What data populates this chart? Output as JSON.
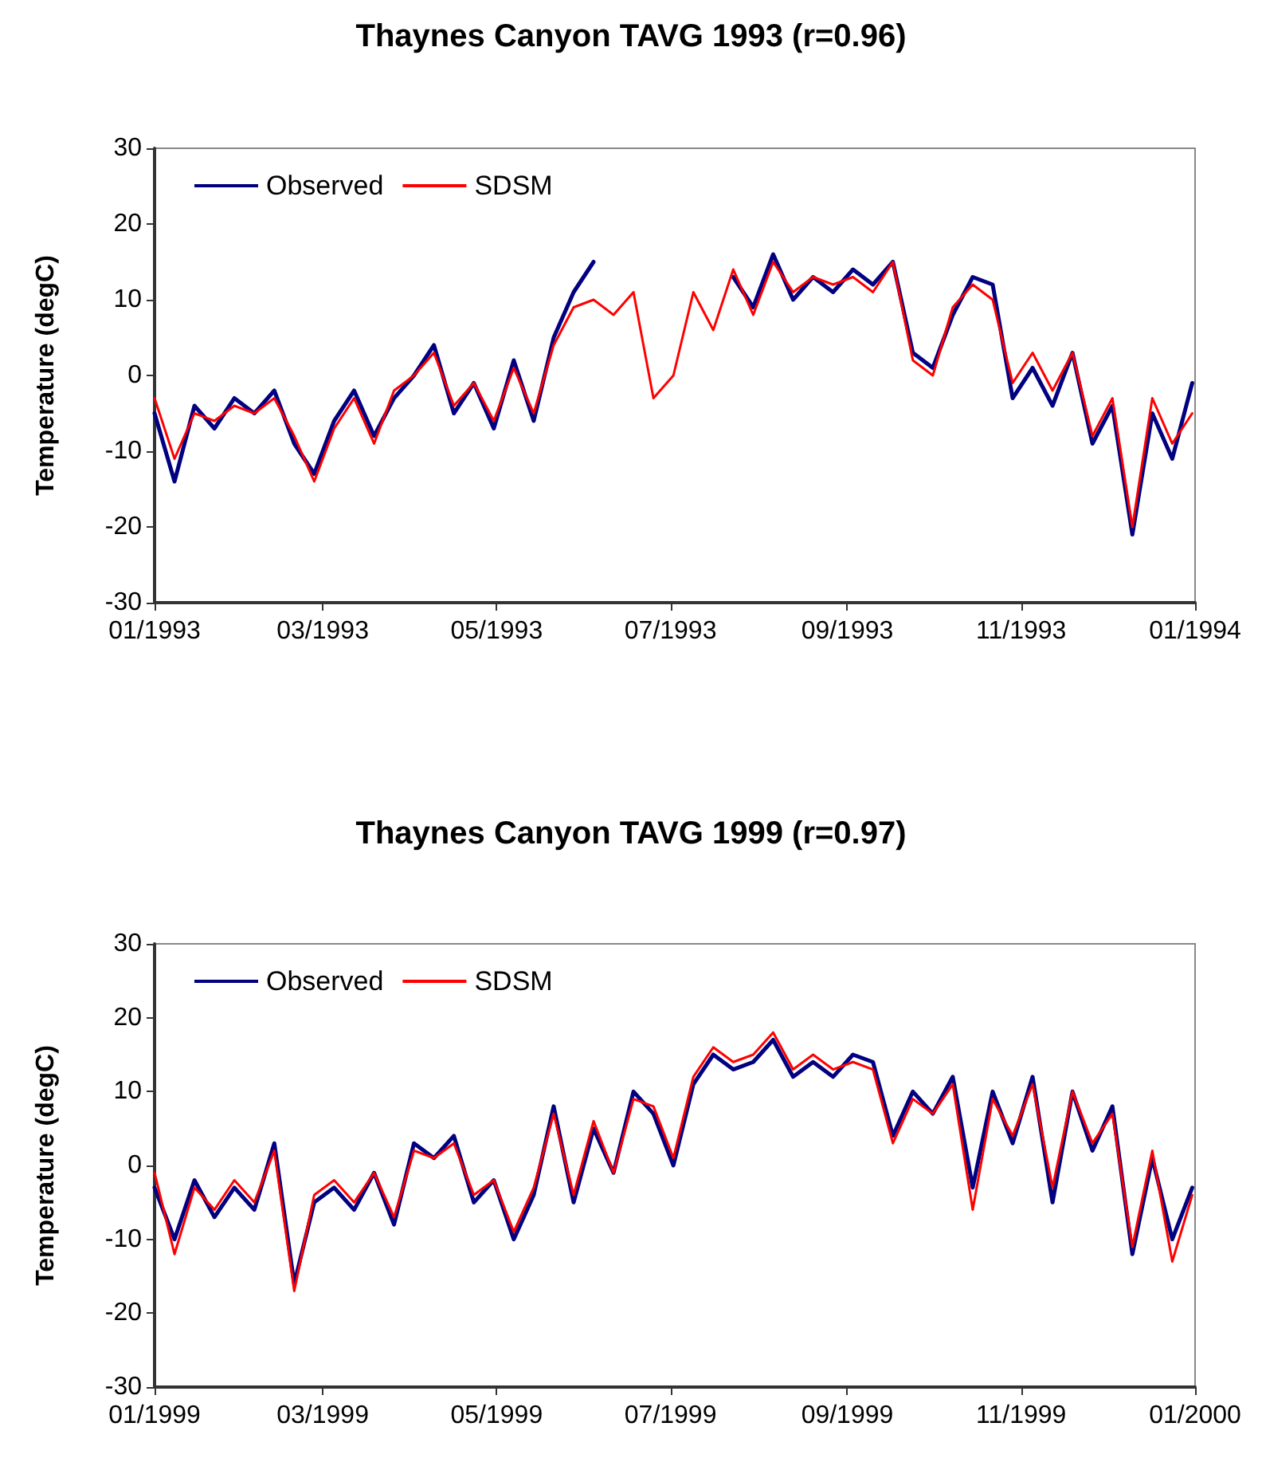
{
  "chart_data": [
    {
      "type": "line",
      "title": "Thaynes Canyon TAVG 1993 (r=0.96)",
      "ylabel": "Temperature (degC)",
      "x": [
        "1993-01-01",
        "1993-01-08",
        "1993-01-15",
        "1993-01-22",
        "1993-01-29",
        "1993-02-05",
        "1993-02-12",
        "1993-02-19",
        "1993-02-26",
        "1993-03-05",
        "1993-03-12",
        "1993-03-19",
        "1993-03-26",
        "1993-04-02",
        "1993-04-09",
        "1993-04-16",
        "1993-04-23",
        "1993-04-30",
        "1993-05-07",
        "1993-05-14",
        "1993-05-21",
        "1993-05-28",
        "1993-06-04",
        "1993-06-11",
        "1993-06-18",
        "1993-06-25",
        "1993-07-02",
        "1993-07-09",
        "1993-07-16",
        "1993-07-23",
        "1993-07-30",
        "1993-08-06",
        "1993-08-13",
        "1993-08-20",
        "1993-08-27",
        "1993-09-03",
        "1993-09-10",
        "1993-09-17",
        "1993-09-24",
        "1993-10-01",
        "1993-10-08",
        "1993-10-15",
        "1993-10-22",
        "1993-10-29",
        "1993-11-05",
        "1993-11-12",
        "1993-11-19",
        "1993-11-26",
        "1993-12-03",
        "1993-12-10",
        "1993-12-17",
        "1993-12-24",
        "1993-12-31"
      ],
      "series": [
        {
          "name": "Observed",
          "color": "#000080",
          "values": [
            -5,
            -14,
            -4,
            -7,
            -3,
            -5,
            -2,
            -9,
            -13,
            -6,
            -2,
            -8,
            -3,
            0,
            4,
            -5,
            -1,
            -7,
            2,
            -6,
            5,
            11,
            15,
            null,
            null,
            null,
            null,
            null,
            null,
            13,
            9,
            16,
            10,
            13,
            11,
            14,
            12,
            15,
            3,
            1,
            8,
            13,
            12,
            -3,
            1,
            -4,
            3,
            -9,
            -4,
            -21,
            -5,
            -11,
            -1
          ]
        },
        {
          "name": "SDSM",
          "color": "#ff0000",
          "values": [
            -3,
            -11,
            -5,
            -6,
            -4,
            -5,
            -3,
            -8,
            -14,
            -7,
            -3,
            -9,
            -2,
            0,
            3,
            -4,
            -1,
            -6,
            1,
            -5,
            4,
            9,
            10,
            8,
            11,
            -3,
            0,
            11,
            6,
            14,
            8,
            15,
            11,
            13,
            12,
            13,
            11,
            15,
            2,
            0,
            9,
            12,
            10,
            -1,
            3,
            -2,
            3,
            -8,
            -3,
            -20,
            -3,
            -9,
            -5
          ]
        }
      ],
      "xlim": [
        "1993-01-01",
        "1994-01-01"
      ],
      "xticks": [
        {
          "value": "1993-01-01",
          "label": "01/1993"
        },
        {
          "value": "1993-03-01",
          "label": "03/1993"
        },
        {
          "value": "1993-05-01",
          "label": "05/1993"
        },
        {
          "value": "1993-07-01",
          "label": "07/1993"
        },
        {
          "value": "1993-09-01",
          "label": "09/1993"
        },
        {
          "value": "1993-11-01",
          "label": "11/1993"
        },
        {
          "value": "1994-01-01",
          "label": "01/1994"
        }
      ],
      "ylim": [
        -30,
        30
      ],
      "yticks": [
        -30,
        -20,
        -10,
        0,
        10,
        20,
        30
      ],
      "grid": false,
      "legend": "top left",
      "marker": "none",
      "line_style": "solid"
    },
    {
      "type": "line",
      "title": "Thaynes Canyon TAVG 1999 (r=0.97)",
      "ylabel": "Temperature (degC)",
      "x": [
        "1999-01-01",
        "1999-01-08",
        "1999-01-15",
        "1999-01-22",
        "1999-01-29",
        "1999-02-05",
        "1999-02-12",
        "1999-02-19",
        "1999-02-26",
        "1999-03-05",
        "1999-03-12",
        "1999-03-19",
        "1999-03-26",
        "1999-04-02",
        "1999-04-09",
        "1999-04-16",
        "1999-04-23",
        "1999-04-30",
        "1999-05-07",
        "1999-05-14",
        "1999-05-21",
        "1999-05-28",
        "1999-06-04",
        "1999-06-11",
        "1999-06-18",
        "1999-06-25",
        "1999-07-02",
        "1999-07-09",
        "1999-07-16",
        "1999-07-23",
        "1999-07-30",
        "1999-08-06",
        "1999-08-13",
        "1999-08-20",
        "1999-08-27",
        "1999-09-03",
        "1999-09-10",
        "1999-09-17",
        "1999-09-24",
        "1999-10-01",
        "1999-10-08",
        "1999-10-15",
        "1999-10-22",
        "1999-10-29",
        "1999-11-05",
        "1999-11-12",
        "1999-11-19",
        "1999-11-26",
        "1999-12-03",
        "1999-12-10",
        "1999-12-17",
        "1999-12-24",
        "1999-12-31"
      ],
      "series": [
        {
          "name": "Observed",
          "color": "#000080",
          "values": [
            -3,
            -10,
            -2,
            -7,
            -3,
            -6,
            3,
            -16,
            -5,
            -3,
            -6,
            -1,
            -8,
            3,
            1,
            4,
            -5,
            -2,
            -10,
            -4,
            8,
            -5,
            5,
            -1,
            10,
            7,
            0,
            11,
            15,
            13,
            14,
            17,
            12,
            14,
            12,
            15,
            14,
            4,
            10,
            7,
            12,
            -3,
            10,
            3,
            12,
            -5,
            10,
            2,
            8,
            -12,
            1,
            -10,
            -3
          ]
        },
        {
          "name": "SDSM",
          "color": "#ff0000",
          "values": [
            -1,
            -12,
            -3,
            -6,
            -2,
            -5,
            2,
            -17,
            -4,
            -2,
            -5,
            -1,
            -7,
            2,
            1,
            3,
            -4,
            -2,
            -9,
            -3,
            7,
            -4,
            6,
            -1,
            9,
            8,
            1,
            12,
            16,
            14,
            15,
            18,
            13,
            15,
            13,
            14,
            13,
            3,
            9,
            7,
            11,
            -6,
            9,
            4,
            11,
            -3,
            10,
            3,
            7,
            -11,
            2,
            -13,
            -4
          ]
        }
      ],
      "xlim": [
        "1999-01-01",
        "2000-01-01"
      ],
      "xticks": [
        {
          "value": "1999-01-01",
          "label": "01/1999"
        },
        {
          "value": "1999-03-01",
          "label": "03/1999"
        },
        {
          "value": "1999-05-01",
          "label": "05/1999"
        },
        {
          "value": "1999-07-01",
          "label": "07/1999"
        },
        {
          "value": "1999-09-01",
          "label": "09/1999"
        },
        {
          "value": "1999-11-01",
          "label": "11/1999"
        },
        {
          "value": "2000-01-01",
          "label": "01/2000"
        }
      ],
      "ylim": [
        -30,
        30
      ],
      "yticks": [
        -30,
        -20,
        -10,
        0,
        10,
        20,
        30
      ],
      "grid": false,
      "legend": "top left",
      "marker": "none",
      "line_style": "solid"
    }
  ]
}
